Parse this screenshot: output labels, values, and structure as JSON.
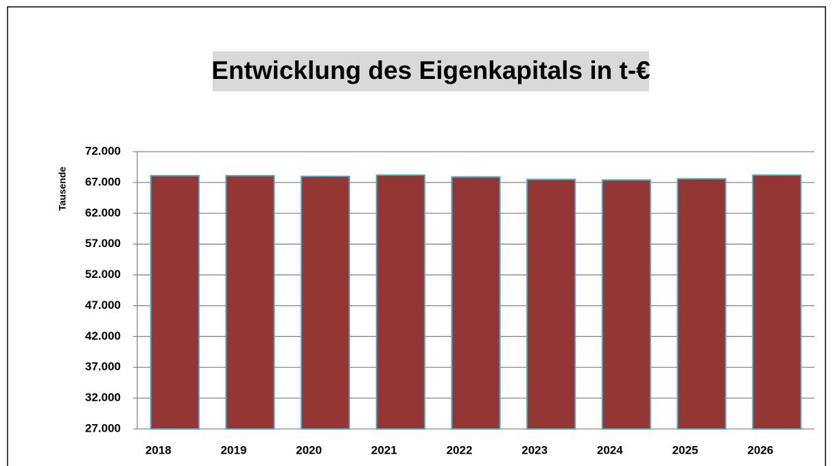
{
  "chart_data": {
    "type": "bar",
    "title": "Entwicklung des Eigenkapitals in t-€",
    "ylabel": "Tausende",
    "categories": [
      "2018",
      "2019",
      "2020",
      "2021",
      "2022",
      "2023",
      "2024",
      "2025",
      "2026"
    ],
    "values": [
      68100,
      68100,
      68000,
      68200,
      67900,
      67500,
      67400,
      67600,
      68200
    ],
    "color": "#943634",
    "ylim": [
      27000,
      72000
    ],
    "yticks": [
      {
        "value": 27000,
        "label": "27.000"
      },
      {
        "value": 32000,
        "label": "32.000"
      },
      {
        "value": 37000,
        "label": "37.000"
      },
      {
        "value": 42000,
        "label": "42.000"
      },
      {
        "value": 47000,
        "label": "47.000"
      },
      {
        "value": 52000,
        "label": "52.000"
      },
      {
        "value": 57000,
        "label": "57.000"
      },
      {
        "value": 62000,
        "label": "62.000"
      },
      {
        "value": 67000,
        "label": "67.000"
      },
      {
        "value": 72000,
        "label": "72.000"
      }
    ],
    "grid": true
  }
}
